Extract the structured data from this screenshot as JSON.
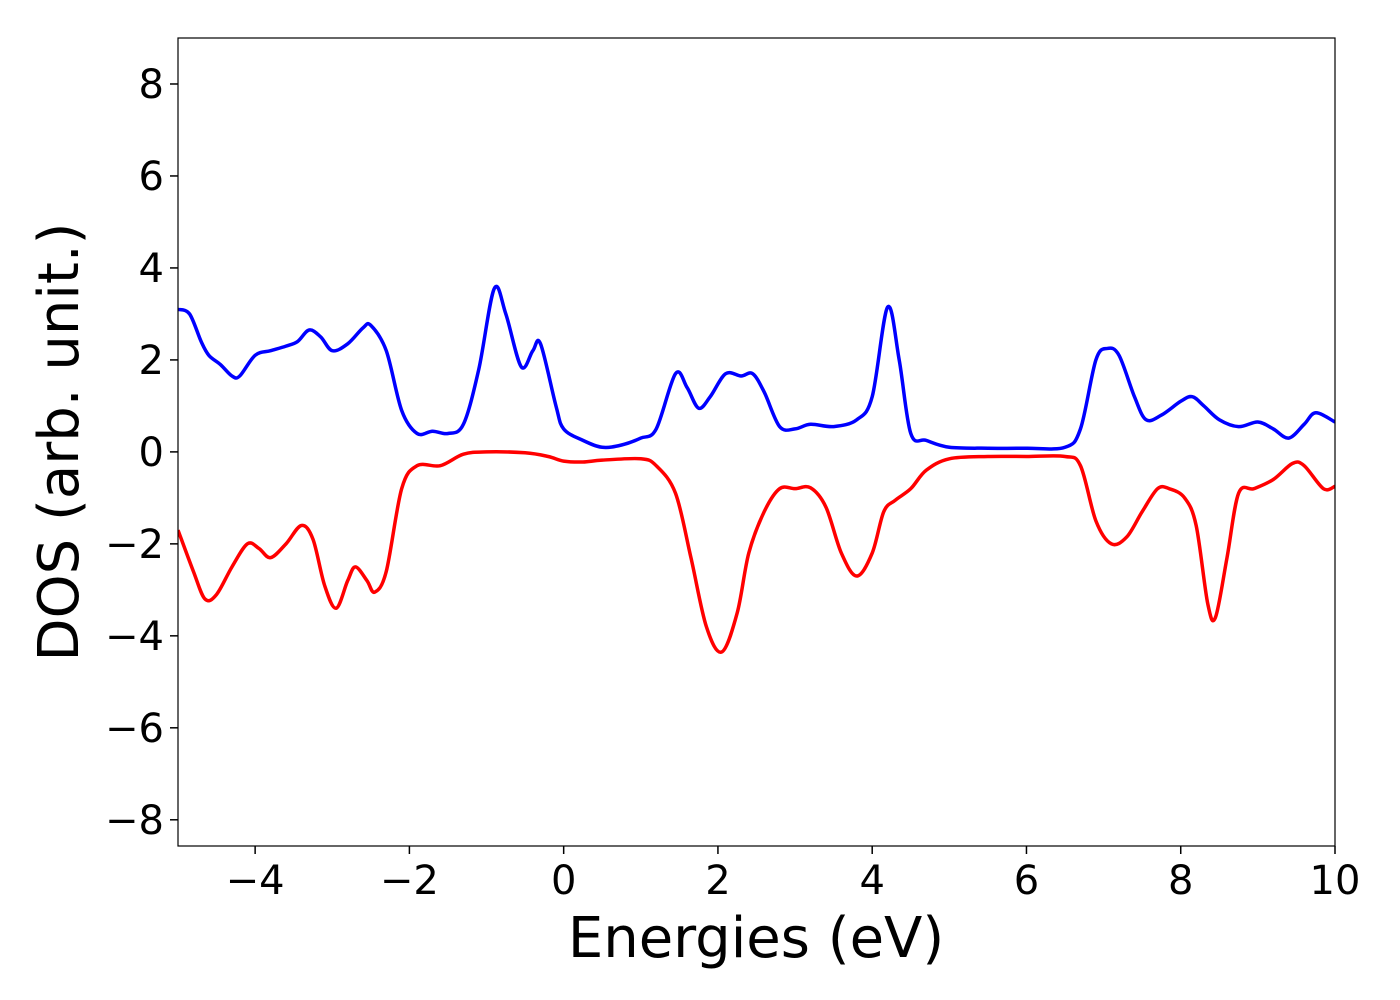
{
  "chart_data": {
    "type": "line",
    "xlabel": "Energies (eV)",
    "ylabel": "DOS (arb. unit.)",
    "xlim": [
      -5,
      10
    ],
    "ylim": [
      -8.57,
      9.0
    ],
    "xticks": [
      {
        "value": -4,
        "label": "−4"
      },
      {
        "value": -2,
        "label": "−2"
      },
      0,
      2,
      4,
      6,
      8,
      10
    ],
    "yticks": [
      {
        "value": -8,
        "label": "−8"
      },
      {
        "value": -6,
        "label": "−6"
      },
      {
        "value": -4,
        "label": "−4"
      },
      {
        "value": -2,
        "label": "−2"
      },
      0,
      2,
      4,
      6,
      8
    ],
    "grid": false,
    "series": [
      {
        "color": "#0000ff",
        "x": [
          -5,
          -4.85,
          -4.7,
          -4.6,
          -4.45,
          -4.3,
          -4.2,
          -4.0,
          -3.8,
          -3.6,
          -3.45,
          -3.3,
          -3.15,
          -3.0,
          -2.8,
          -2.6,
          -2.5,
          -2.3,
          -2.1,
          -1.9,
          -1.7,
          -1.5,
          -1.3,
          -1.1,
          -0.9,
          -0.75,
          -0.55,
          -0.4,
          -0.3,
          -0.1,
          0.0,
          0.25,
          0.5,
          0.75,
          1.0,
          1.2,
          1.45,
          1.6,
          1.75,
          1.9,
          2.1,
          2.3,
          2.45,
          2.6,
          2.8,
          3.0,
          3.2,
          3.5,
          3.8,
          4.0,
          4.2,
          4.35,
          4.5,
          4.7,
          5.0,
          5.5,
          6.0,
          6.5,
          6.7,
          6.9,
          7.05,
          7.2,
          7.4,
          7.55,
          7.75,
          8.0,
          8.15,
          8.3,
          8.5,
          8.75,
          9.0,
          9.2,
          9.4,
          9.6,
          9.75,
          10
        ],
        "values": [
          3.1,
          3.0,
          2.4,
          2.1,
          1.9,
          1.65,
          1.65,
          2.1,
          2.2,
          2.3,
          2.4,
          2.65,
          2.5,
          2.2,
          2.35,
          2.7,
          2.75,
          2.2,
          0.9,
          0.4,
          0.45,
          0.4,
          0.6,
          1.8,
          3.55,
          3.0,
          1.85,
          2.2,
          2.35,
          1.0,
          0.5,
          0.25,
          0.1,
          0.15,
          0.3,
          0.5,
          1.7,
          1.4,
          0.95,
          1.2,
          1.7,
          1.65,
          1.7,
          1.3,
          0.55,
          0.5,
          0.6,
          0.55,
          0.7,
          1.2,
          3.15,
          2.0,
          0.4,
          0.25,
          0.1,
          0.08,
          0.08,
          0.1,
          0.5,
          2.0,
          2.25,
          2.1,
          1.2,
          0.7,
          0.8,
          1.1,
          1.2,
          1.0,
          0.7,
          0.55,
          0.65,
          0.5,
          0.3,
          0.6,
          0.85,
          0.65
        ]
      },
      {
        "color": "#ff0000",
        "x": [
          -5,
          -4.8,
          -4.65,
          -4.5,
          -4.3,
          -4.1,
          -3.95,
          -3.8,
          -3.6,
          -3.4,
          -3.25,
          -3.1,
          -2.95,
          -2.8,
          -2.7,
          -2.55,
          -2.45,
          -2.3,
          -2.1,
          -1.9,
          -1.6,
          -1.3,
          -1.0,
          -0.5,
          -0.2,
          0.0,
          0.25,
          0.5,
          1.0,
          1.2,
          1.45,
          1.65,
          1.85,
          2.05,
          2.25,
          2.4,
          2.6,
          2.8,
          3.0,
          3.2,
          3.4,
          3.6,
          3.8,
          4.0,
          4.15,
          4.3,
          4.5,
          4.7,
          5.0,
          5.5,
          6.0,
          6.5,
          6.7,
          6.9,
          7.1,
          7.3,
          7.5,
          7.7,
          7.85,
          8.05,
          8.2,
          8.35,
          8.45,
          8.6,
          8.75,
          8.95,
          9.2,
          9.45,
          9.6,
          9.85,
          10
        ],
        "values": [
          -1.7,
          -2.6,
          -3.2,
          -3.1,
          -2.5,
          -2.0,
          -2.1,
          -2.3,
          -2.0,
          -1.6,
          -1.9,
          -2.9,
          -3.4,
          -2.8,
          -2.5,
          -2.8,
          -3.05,
          -2.6,
          -0.8,
          -0.3,
          -0.3,
          -0.05,
          0,
          -0.02,
          -0.1,
          -0.2,
          -0.22,
          -0.18,
          -0.15,
          -0.3,
          -0.9,
          -2.3,
          -3.8,
          -4.35,
          -3.5,
          -2.2,
          -1.3,
          -0.8,
          -0.8,
          -0.78,
          -1.2,
          -2.2,
          -2.7,
          -2.2,
          -1.3,
          -1.05,
          -0.8,
          -0.4,
          -0.15,
          -0.1,
          -0.1,
          -0.1,
          -0.3,
          -1.5,
          -2.0,
          -1.85,
          -1.3,
          -0.8,
          -0.8,
          -1.0,
          -1.6,
          -3.3,
          -3.6,
          -2.3,
          -0.9,
          -0.8,
          -0.6,
          -0.25,
          -0.3,
          -0.8,
          -0.75
        ]
      }
    ]
  }
}
